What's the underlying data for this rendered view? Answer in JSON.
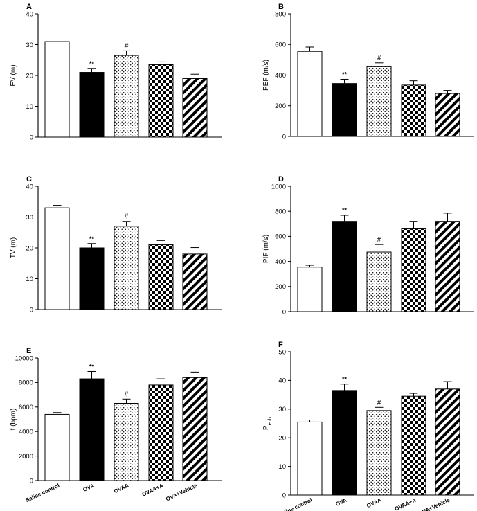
{
  "chart_data": [
    {
      "type": "bar",
      "panel": "A",
      "ylabel": "EV (m)",
      "ylim": [
        0,
        40
      ],
      "ticks": [
        0,
        10,
        20,
        30,
        40
      ],
      "categories": [
        "Saline control",
        "OVA",
        "OVAA",
        "OVAA+A",
        "OVA+Vehicle"
      ],
      "values": [
        31,
        21,
        26.5,
        23.5,
        19
      ],
      "errors": [
        0.8,
        1.3,
        1.5,
        0.9,
        1.4
      ],
      "annotations": [
        "",
        "**",
        "#",
        "",
        ""
      ]
    },
    {
      "type": "bar",
      "panel": "B",
      "ylabel": "PEF (m/s)",
      "ylim": [
        0,
        800
      ],
      "ticks": [
        0,
        200,
        400,
        600,
        800
      ],
      "categories": [
        "Saline control",
        "OVA",
        "OVAA",
        "OVAA+A",
        "OVA+Vehicle"
      ],
      "values": [
        555,
        345,
        455,
        335,
        280
      ],
      "errors": [
        28,
        28,
        25,
        28,
        20
      ],
      "annotations": [
        "",
        "**",
        "#",
        "",
        ""
      ]
    },
    {
      "type": "bar",
      "panel": "C",
      "ylabel": "TV (m)",
      "ylim": [
        0,
        40
      ],
      "ticks": [
        0,
        10,
        20,
        30,
        40
      ],
      "categories": [
        "Saline control",
        "OVA",
        "OVAA",
        "OVAA+A",
        "OVA+Vehicle"
      ],
      "values": [
        33,
        20,
        27,
        21,
        18
      ],
      "errors": [
        0.8,
        1.4,
        1.6,
        1.4,
        2.1
      ],
      "annotations": [
        "",
        "**",
        "#",
        "",
        ""
      ]
    },
    {
      "type": "bar",
      "panel": "D",
      "ylabel": "PIF (m/s)",
      "ylim": [
        0,
        1000
      ],
      "ticks": [
        0,
        200,
        400,
        600,
        800,
        1000
      ],
      "categories": [
        "Saline control",
        "OVA",
        "OVAA",
        "OVAA+A",
        "OVA+Vehicle"
      ],
      "values": [
        355,
        720,
        475,
        660,
        720
      ],
      "errors": [
        15,
        48,
        60,
        60,
        65
      ],
      "annotations": [
        "",
        "**",
        "#",
        "",
        ""
      ]
    },
    {
      "type": "bar",
      "panel": "E",
      "ylabel": "f (bpm)",
      "ylim": [
        0,
        10000
      ],
      "ticks": [
        0,
        2000,
        4000,
        6000,
        8000,
        10000
      ],
      "categories": [
        "Saline control",
        "OVA",
        "OVAA",
        "OVAA+A",
        "OVA+Vehicle"
      ],
      "values": [
        5400,
        8300,
        6300,
        7800,
        8400
      ],
      "errors": [
        150,
        600,
        350,
        500,
        450
      ],
      "annotations": [
        "",
        "**",
        "#",
        "",
        ""
      ]
    },
    {
      "type": "bar",
      "panel": "F",
      "ylabel": "Penh",
      "ylabel_main": "P",
      "ylabel_sub": "enh",
      "ylim": [
        0,
        50
      ],
      "ticks": [
        0,
        10,
        20,
        30,
        40,
        50
      ],
      "categories": [
        "Saline control",
        "OVA",
        "OVAA",
        "OVAA+A",
        "OVA+Vehicle"
      ],
      "values": [
        25.5,
        36.5,
        29.5,
        34.5,
        37
      ],
      "errors": [
        0.7,
        2.2,
        1.1,
        1.0,
        2.6
      ],
      "annotations": [
        "",
        "**",
        "#",
        "",
        ""
      ]
    }
  ],
  "fills": [
    "white",
    "black",
    "dots",
    "checker",
    "stripes"
  ]
}
